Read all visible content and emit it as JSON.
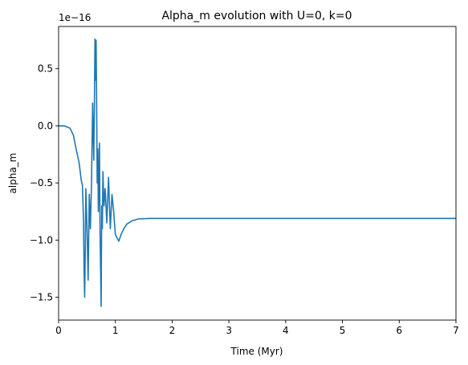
{
  "chart_data": {
    "type": "line",
    "title": "Alpha_m evolution with U=0, k=0",
    "xlabel": "Time (Myr)",
    "ylabel": "alpha_m",
    "y_offset_label": "1e−16",
    "xlim": [
      0,
      7
    ],
    "ylim": [
      -1.7,
      0.87
    ],
    "grid": false,
    "legend": "none",
    "line_color": "#1f77b4",
    "x_ticks": [
      0,
      1,
      2,
      3,
      4,
      5,
      6,
      7
    ],
    "x_tick_labels": [
      "0",
      "1",
      "2",
      "3",
      "4",
      "5",
      "6",
      "7"
    ],
    "y_ticks": [
      0.5,
      0.0,
      -0.5,
      -1.0,
      -1.5
    ],
    "y_tick_labels": [
      "0.5",
      "0.0",
      "−0.5",
      "−1.0",
      "−1.5"
    ],
    "series": [
      {
        "x": [
          0.0,
          0.1,
          0.2,
          0.26,
          0.3,
          0.33,
          0.36,
          0.38,
          0.4,
          0.42,
          0.44,
          0.45,
          0.46,
          0.47,
          0.48,
          0.5,
          0.52,
          0.54,
          0.56,
          0.58,
          0.6,
          0.62,
          0.63,
          0.64,
          0.65,
          0.66,
          0.67,
          0.68,
          0.69,
          0.7,
          0.72,
          0.73,
          0.74,
          0.75,
          0.76,
          0.77,
          0.78,
          0.8,
          0.82,
          0.85,
          0.88,
          0.91,
          0.94,
          0.97,
          1.0,
          1.03,
          1.06,
          1.1,
          1.15,
          1.2,
          1.3,
          1.4,
          1.6,
          1.8,
          2.0,
          2.5,
          3.0,
          4.0,
          5.0,
          6.0,
          7.0
        ],
        "y": [
          0.0,
          0.0,
          -0.02,
          -0.08,
          -0.18,
          -0.25,
          -0.32,
          -0.4,
          -0.48,
          -0.52,
          -0.85,
          -1.3,
          -1.5,
          -1.1,
          -0.55,
          -0.9,
          -1.35,
          -0.6,
          -0.9,
          -0.5,
          0.2,
          -0.3,
          0.1,
          0.76,
          0.4,
          0.75,
          0.2,
          -0.5,
          -0.2,
          -0.75,
          -0.15,
          -0.9,
          -1.25,
          -1.58,
          -0.7,
          -0.9,
          -0.4,
          -0.7,
          -0.55,
          -0.85,
          -0.45,
          -0.9,
          -0.6,
          -0.75,
          -0.95,
          -0.98,
          -1.01,
          -0.95,
          -0.9,
          -0.86,
          -0.83,
          -0.815,
          -0.81,
          -0.81,
          -0.81,
          -0.81,
          -0.81,
          -0.81,
          -0.81,
          -0.81,
          -0.81
        ]
      }
    ]
  }
}
